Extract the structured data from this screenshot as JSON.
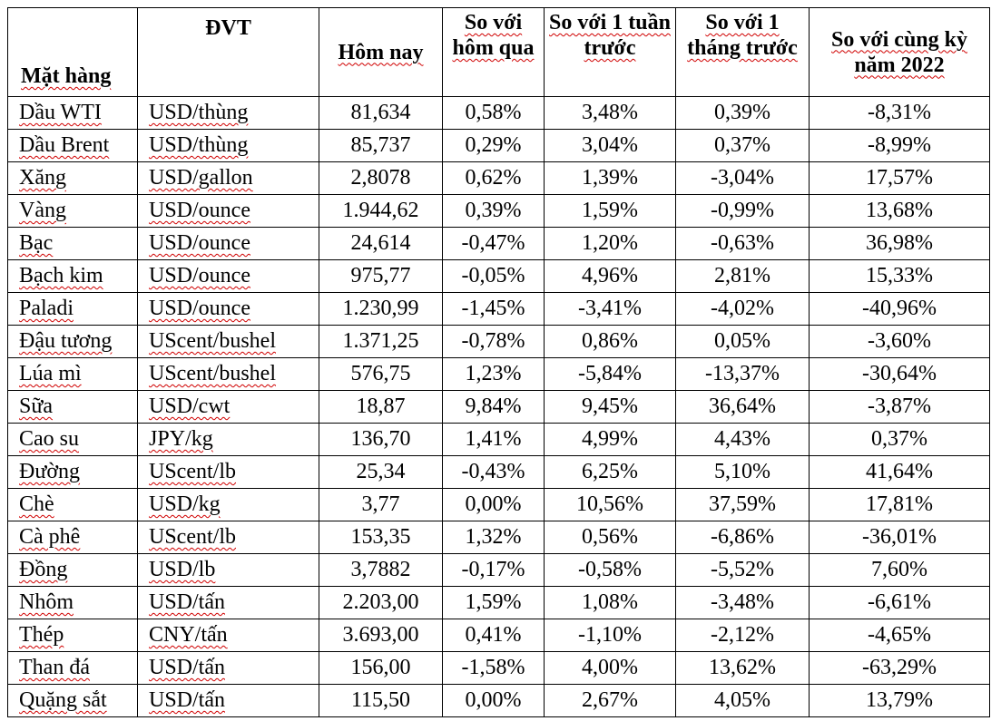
{
  "headers": {
    "item": "Mặt hàng",
    "unit": "ĐVT",
    "today": "Hôm nay",
    "vs_yesterday": "So với hôm qua",
    "vs_week": "So với 1 tuần trước",
    "vs_month": "So với 1 tháng trước",
    "vs_year": "So với cùng kỳ năm 2022"
  },
  "rows": [
    {
      "item": "Dầu WTI",
      "unit": "USD/thùng",
      "today": "81,634",
      "d1": "0,58%",
      "w1": "3,48%",
      "m1": "0,39%",
      "y1": "-8,31%"
    },
    {
      "item": "Dầu Brent",
      "unit": "USD/thùng",
      "today": "85,737",
      "d1": "0,29%",
      "w1": "3,04%",
      "m1": "0,37%",
      "y1": "-8,99%"
    },
    {
      "item": "Xăng",
      "unit": "USD/gallon",
      "today": "2,8078",
      "d1": "0,62%",
      "w1": "1,39%",
      "m1": "-3,04%",
      "y1": "17,57%"
    },
    {
      "item": "Vàng",
      "unit": "USD/ounce",
      "today": "1.944,62",
      "d1": "0,39%",
      "w1": "1,59%",
      "m1": "-0,99%",
      "y1": "13,68%"
    },
    {
      "item": "Bạc",
      "unit": "USD/ounce",
      "today": "24,614",
      "d1": "-0,47%",
      "w1": "1,20%",
      "m1": "-0,63%",
      "y1": "36,98%"
    },
    {
      "item": "Bạch kim",
      "unit": "USD/ounce",
      "today": "975,77",
      "d1": "-0,05%",
      "w1": "4,96%",
      "m1": "2,81%",
      "y1": "15,33%"
    },
    {
      "item": "Paladi",
      "unit": "USD/ounce",
      "today": "1.230,99",
      "d1": "-1,45%",
      "w1": "-3,41%",
      "m1": "-4,02%",
      "y1": "-40,96%"
    },
    {
      "item": "Đậu tương",
      "unit": "UScent/bushel",
      "today": "1.371,25",
      "d1": "-0,78%",
      "w1": "0,86%",
      "m1": "0,05%",
      "y1": "-3,60%"
    },
    {
      "item": "Lúa mì",
      "unit": "UScent/bushel",
      "today": "576,75",
      "d1": "1,23%",
      "w1": "-5,84%",
      "m1": "-13,37%",
      "y1": "-30,64%"
    },
    {
      "item": "Sữa",
      "unit": "USD/cwt",
      "today": "18,87",
      "d1": "9,84%",
      "w1": "9,45%",
      "m1": "36,64%",
      "y1": "-3,87%"
    },
    {
      "item": "Cao su",
      "unit": "JPY/kg",
      "today": "136,70",
      "d1": "1,41%",
      "w1": "4,99%",
      "m1": "4,43%",
      "y1": "0,37%"
    },
    {
      "item": "Đường",
      "unit": "UScent/lb",
      "today": "25,34",
      "d1": "-0,43%",
      "w1": "6,25%",
      "m1": "5,10%",
      "y1": "41,64%"
    },
    {
      "item": "Chè",
      "unit": "USD/kg",
      "today": "3,77",
      "d1": "0,00%",
      "w1": "10,56%",
      "m1": "37,59%",
      "y1": "17,81%"
    },
    {
      "item": "Cà phê",
      "unit": "UScent/lb",
      "today": "153,35",
      "d1": "1,32%",
      "w1": "0,56%",
      "m1": "-6,86%",
      "y1": "-36,01%"
    },
    {
      "item": "Đồng",
      "unit": "USD/lb",
      "today": "3,7882",
      "d1": "-0,17%",
      "w1": "-0,58%",
      "m1": "-5,52%",
      "y1": "7,60%"
    },
    {
      "item": "Nhôm",
      "unit": "USD/tấn",
      "today": "2.203,00",
      "d1": "1,59%",
      "w1": "1,08%",
      "m1": "-3,48%",
      "y1": "-6,61%"
    },
    {
      "item": "Thép",
      "unit": "CNY/tấn",
      "today": "3.693,00",
      "d1": "0,41%",
      "w1": "-1,10%",
      "m1": "-2,12%",
      "y1": "-4,65%"
    },
    {
      "item": "Than đá",
      "unit": "USD/tấn",
      "today": "156,00",
      "d1": "-1,58%",
      "w1": "4,00%",
      "m1": "13,62%",
      "y1": "-63,29%"
    },
    {
      "item": "Quặng sắt",
      "unit": "USD/tấn",
      "today": "115,50",
      "d1": "0,00%",
      "w1": "2,67%",
      "m1": "4,05%",
      "y1": "13,79%"
    }
  ]
}
